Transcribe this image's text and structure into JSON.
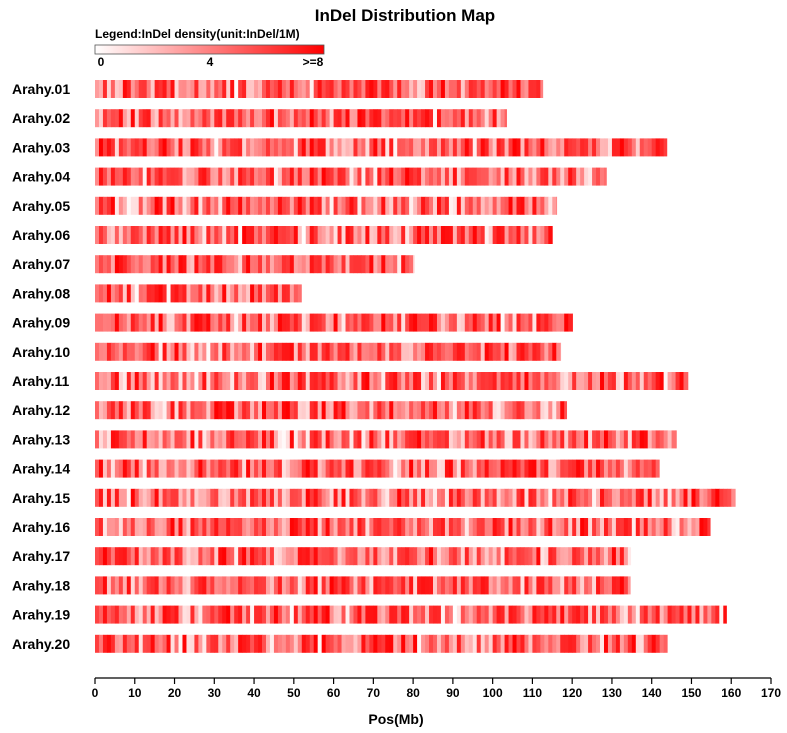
{
  "chart_data": {
    "type": "heatmap",
    "title": "InDel Distribution Map",
    "legend": {
      "title": "Legend:InDel density(unit:InDel/1M)",
      "tick_labels": [
        "0",
        "4",
        ">=8"
      ],
      "color_low": "#ffffff",
      "color_high": "#ff0000",
      "max_value": 8
    },
    "xlabel": "Pos(Mb)",
    "xlim": [
      0,
      170
    ],
    "x_ticks": [
      0,
      10,
      20,
      30,
      40,
      50,
      60,
      70,
      80,
      90,
      100,
      110,
      120,
      130,
      140,
      150,
      160,
      170
    ],
    "bin_size_mb": 1,
    "chromosomes": [
      {
        "name": "Arahy.01",
        "length": 112.6
      },
      {
        "name": "Arahy.02",
        "length": 103.5
      },
      {
        "name": "Arahy.03",
        "length": 143.8
      },
      {
        "name": "Arahy.04",
        "length": 128.6
      },
      {
        "name": "Arahy.05",
        "length": 116.1
      },
      {
        "name": "Arahy.06",
        "length": 115.0
      },
      {
        "name": "Arahy.07",
        "length": 80.3
      },
      {
        "name": "Arahy.08",
        "length": 51.9
      },
      {
        "name": "Arahy.09",
        "length": 120.1
      },
      {
        "name": "Arahy.10",
        "length": 117.1
      },
      {
        "name": "Arahy.11",
        "length": 149.1
      },
      {
        "name": "Arahy.12",
        "length": 118.6
      },
      {
        "name": "Arahy.13",
        "length": 146.2
      },
      {
        "name": "Arahy.14",
        "length": 141.9
      },
      {
        "name": "Arahy.15",
        "length": 161.0
      },
      {
        "name": "Arahy.16",
        "length": 154.7
      },
      {
        "name": "Arahy.17",
        "length": 134.7
      },
      {
        "name": "Arahy.18",
        "length": 134.6
      },
      {
        "name": "Arahy.19",
        "length": 158.8
      },
      {
        "name": "Arahy.20",
        "length": 143.9
      }
    ]
  }
}
